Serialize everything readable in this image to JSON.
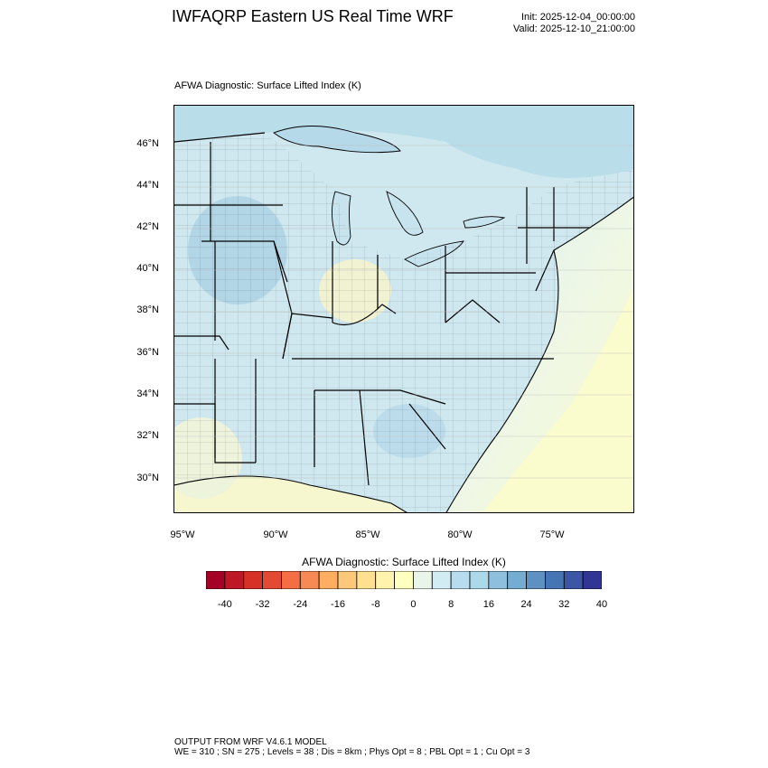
{
  "header": {
    "title": "IWFAQRP Eastern US Real Time WRF",
    "init": "Init: 2025-12-04_00:00:00",
    "valid": "Valid: 2025-12-10_21:00:00"
  },
  "plot": {
    "field_label": "AFWA Diagnostic: Surface Lifted Index   (K)",
    "lat_labels": [
      "46°N",
      "44°N",
      "42°N",
      "40°N",
      "38°N",
      "36°N",
      "34°N",
      "32°N",
      "30°N"
    ],
    "lon_labels": [
      "95°W",
      "90°W",
      "85°W",
      "80°W",
      "75°W"
    ],
    "colors": {
      "ocean_north": "#b9dde9",
      "land_blue": "#cbe5ef",
      "land_light": "#e4f2ee",
      "land_yellow": "#f6f7cf",
      "ocean_south": "#fbfccd",
      "lakes": "#c7e3ee"
    }
  },
  "colorbar": {
    "title": "AFWA Diagnostic: Surface Lifted Index  (K)",
    "tick_labels": [
      "-40",
      "-32",
      "-24",
      "-16",
      "-8",
      "0",
      "8",
      "16",
      "24",
      "32",
      "40"
    ],
    "colors": [
      "#a50026",
      "#be1826",
      "#d73027",
      "#e34a33",
      "#f46d43",
      "#f78a54",
      "#fdae61",
      "#fec87a",
      "#fee090",
      "#fff2ad",
      "#ffffbf",
      "#e8f5e8",
      "#d2ecf4",
      "#b7dced",
      "#abd9e9",
      "#8ebfdc",
      "#74add1",
      "#5d91c2",
      "#4575b4",
      "#3a56a4",
      "#313695"
    ]
  },
  "footer": {
    "line1": "OUTPUT FROM WRF V4.6.1 MODEL",
    "line2": "WE = 310 ; SN = 275 ; Levels = 38 ; Dis = 8km ; Phys Opt = 8 ; PBL Opt = 1 ; Cu Opt = 3"
  }
}
